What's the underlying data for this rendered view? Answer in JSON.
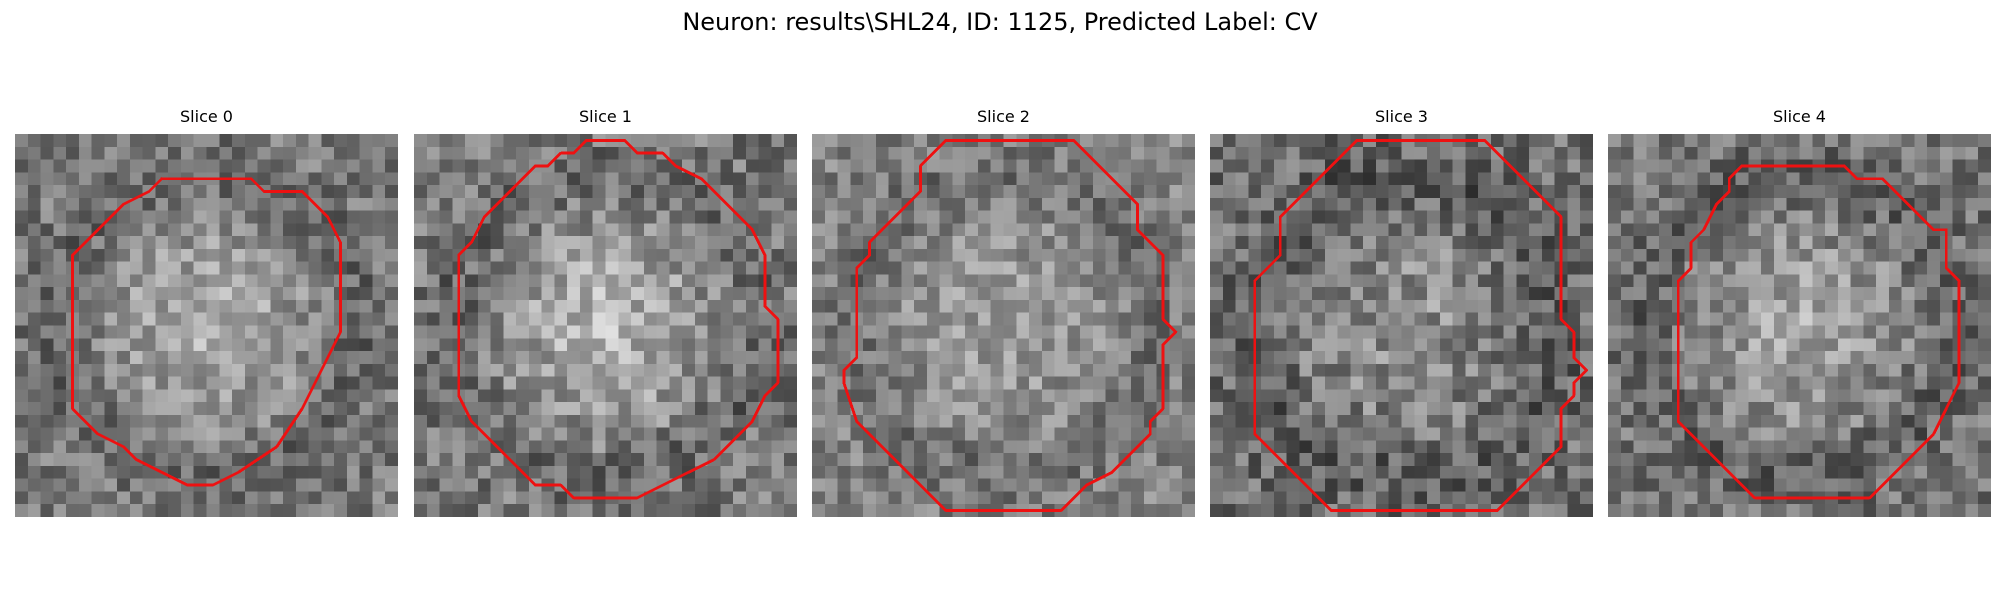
{
  "figure": {
    "title": "Neuron: results\\SHL24, ID: 1125, Predicted Label: CV"
  },
  "contour_color": "#ee1111",
  "image_grid": {
    "rows": 30,
    "cols": 30,
    "colormap": "grayscale"
  },
  "panels": [
    {
      "title": "Slice 0",
      "base_gray": 120,
      "center_gray": 180,
      "noise": 42,
      "contour": [
        [
          11,
          3
        ],
        [
          18,
          3
        ],
        [
          19,
          4
        ],
        [
          22,
          4
        ],
        [
          23,
          5
        ],
        [
          24,
          6
        ],
        [
          25,
          8
        ],
        [
          25,
          9
        ],
        [
          25,
          15
        ],
        [
          24,
          17
        ],
        [
          23,
          19
        ],
        [
          22,
          21
        ],
        [
          20,
          24
        ],
        [
          17,
          26
        ],
        [
          15,
          27
        ],
        [
          13,
          27
        ],
        [
          11,
          26
        ],
        [
          9,
          25
        ],
        [
          8,
          24
        ],
        [
          6,
          23
        ],
        [
          5,
          22
        ],
        [
          4,
          21
        ],
        [
          4,
          20
        ],
        [
          4,
          9
        ],
        [
          5,
          8
        ],
        [
          6,
          7
        ],
        [
          7,
          6
        ],
        [
          8,
          5
        ],
        [
          10,
          4
        ]
      ]
    },
    {
      "title": "Slice 1",
      "base_gray": 120,
      "center_gray": 190,
      "noise": 46,
      "contour": [
        [
          12,
          1
        ],
        [
          13,
          0
        ],
        [
          16,
          0
        ],
        [
          17,
          1
        ],
        [
          19,
          1
        ],
        [
          20,
          2
        ],
        [
          22,
          3
        ],
        [
          23,
          4
        ],
        [
          24,
          5
        ],
        [
          25,
          6
        ],
        [
          26,
          7
        ],
        [
          27,
          9
        ],
        [
          27,
          13
        ],
        [
          28,
          14
        ],
        [
          28,
          19
        ],
        [
          27,
          20
        ],
        [
          26,
          22
        ],
        [
          25,
          23
        ],
        [
          24,
          24
        ],
        [
          23,
          25
        ],
        [
          21,
          26
        ],
        [
          19,
          27
        ],
        [
          17,
          28
        ],
        [
          12,
          28
        ],
        [
          11,
          27
        ],
        [
          9,
          27
        ],
        [
          8,
          26
        ],
        [
          7,
          25
        ],
        [
          6,
          24
        ],
        [
          5,
          23
        ],
        [
          4,
          22
        ],
        [
          3,
          20
        ],
        [
          3,
          19
        ],
        [
          3,
          9
        ],
        [
          4,
          8
        ],
        [
          5,
          6
        ],
        [
          6,
          5
        ],
        [
          7,
          4
        ],
        [
          8,
          3
        ],
        [
          9,
          2
        ],
        [
          10,
          2
        ],
        [
          11,
          1
        ]
      ]
    },
    {
      "title": "Slice 2",
      "base_gray": 130,
      "center_gray": 160,
      "noise": 40,
      "contour": [
        [
          10,
          0
        ],
        [
          12,
          0
        ],
        [
          13,
          0
        ],
        [
          20,
          0
        ],
        [
          21,
          1
        ],
        [
          22,
          2
        ],
        [
          23,
          3
        ],
        [
          24,
          4
        ],
        [
          25,
          5
        ],
        [
          25,
          7
        ],
        [
          26,
          8
        ],
        [
          27,
          9
        ],
        [
          27,
          13
        ],
        [
          27,
          14
        ],
        [
          28,
          15
        ],
        [
          27,
          16
        ],
        [
          27,
          21
        ],
        [
          26,
          22
        ],
        [
          26,
          23
        ],
        [
          25,
          24
        ],
        [
          24,
          25
        ],
        [
          23,
          26
        ],
        [
          21,
          27
        ],
        [
          20,
          28
        ],
        [
          19,
          29
        ],
        [
          10,
          29
        ],
        [
          9,
          28
        ],
        [
          8,
          27
        ],
        [
          7,
          26
        ],
        [
          6,
          25
        ],
        [
          5,
          24
        ],
        [
          4,
          23
        ],
        [
          3,
          22
        ],
        [
          2,
          19
        ],
        [
          2,
          18
        ],
        [
          3,
          17
        ],
        [
          3,
          11
        ],
        [
          3,
          10
        ],
        [
          4,
          9
        ],
        [
          4,
          8
        ],
        [
          5,
          7
        ],
        [
          6,
          6
        ],
        [
          7,
          5
        ],
        [
          8,
          4
        ],
        [
          8,
          2
        ],
        [
          9,
          1
        ]
      ]
    },
    {
      "title": "Slice 3",
      "base_gray": 110,
      "center_gray": 150,
      "noise": 48,
      "contour": [
        [
          11,
          0
        ],
        [
          12,
          0
        ],
        [
          13,
          0
        ],
        [
          21,
          0
        ],
        [
          22,
          1
        ],
        [
          24,
          3
        ],
        [
          25,
          4
        ],
        [
          26,
          5
        ],
        [
          27,
          6
        ],
        [
          27,
          9
        ],
        [
          27,
          10
        ],
        [
          27,
          14
        ],
        [
          28,
          15
        ],
        [
          28,
          16
        ],
        [
          28,
          17
        ],
        [
          29,
          18
        ],
        [
          28,
          19
        ],
        [
          28,
          20
        ],
        [
          27,
          21
        ],
        [
          27,
          22
        ],
        [
          27,
          24
        ],
        [
          26,
          25
        ],
        [
          25,
          26
        ],
        [
          24,
          27
        ],
        [
          22,
          29
        ],
        [
          9,
          29
        ],
        [
          7,
          27
        ],
        [
          6,
          26
        ],
        [
          5,
          25
        ],
        [
          4,
          24
        ],
        [
          3,
          23
        ],
        [
          3,
          22
        ],
        [
          3,
          11
        ],
        [
          4,
          10
        ],
        [
          5,
          9
        ],
        [
          5,
          8
        ],
        [
          5,
          7
        ],
        [
          5,
          6
        ],
        [
          6,
          5
        ],
        [
          7,
          4
        ],
        [
          8,
          3
        ],
        [
          9,
          2
        ],
        [
          10,
          1
        ]
      ]
    },
    {
      "title": "Slice 4",
      "base_gray": 115,
      "center_gray": 170,
      "noise": 44,
      "contour": [
        [
          10,
          2
        ],
        [
          12,
          2
        ],
        [
          18,
          2
        ],
        [
          19,
          3
        ],
        [
          21,
          3
        ],
        [
          22,
          4
        ],
        [
          23,
          5
        ],
        [
          24,
          6
        ],
        [
          25,
          7
        ],
        [
          26,
          7
        ],
        [
          26,
          10
        ],
        [
          27,
          11
        ],
        [
          27,
          19
        ],
        [
          26,
          21
        ],
        [
          25,
          23
        ],
        [
          24,
          24
        ],
        [
          23,
          25
        ],
        [
          22,
          26
        ],
        [
          21,
          27
        ],
        [
          20,
          28
        ],
        [
          11,
          28
        ],
        [
          10,
          27
        ],
        [
          9,
          26
        ],
        [
          8,
          25
        ],
        [
          7,
          24
        ],
        [
          6,
          23
        ],
        [
          5,
          22
        ],
        [
          5,
          20
        ],
        [
          5,
          11
        ],
        [
          6,
          10
        ],
        [
          6,
          9
        ],
        [
          6,
          8
        ],
        [
          7,
          7
        ],
        [
          8,
          5
        ],
        [
          9,
          4
        ],
        [
          9,
          3
        ]
      ]
    }
  ]
}
